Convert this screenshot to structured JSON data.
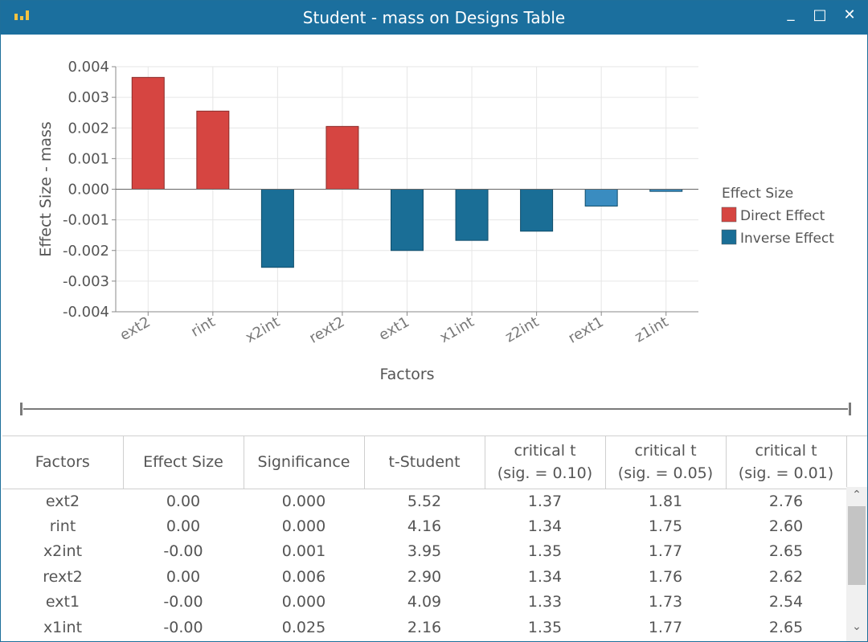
{
  "window": {
    "title": "Student - mass on Designs Table",
    "minimize": "_",
    "maximize": "□",
    "close": "✕"
  },
  "chart_data": {
    "type": "bar",
    "title": "",
    "xlabel": "Factors",
    "ylabel": "Effect Size - mass",
    "ylim": [
      -0.004,
      0.004
    ],
    "yticks": [
      "0.004",
      "0.003",
      "0.002",
      "0.001",
      "0.000",
      "-0.001",
      "-0.002",
      "-0.003",
      "-0.004"
    ],
    "ytick_values": [
      0.004,
      0.003,
      0.002,
      0.001,
      0.0,
      -0.001,
      -0.002,
      -0.003,
      -0.004
    ],
    "categories": [
      "ext2",
      "rint",
      "x2int",
      "rext2",
      "ext1",
      "x1int",
      "z2int",
      "rext1",
      "z1int"
    ],
    "values": [
      0.00365,
      0.00255,
      -0.00255,
      0.00205,
      -0.002,
      -0.00167,
      -0.00137,
      -0.00055,
      -7e-05
    ],
    "grid": true,
    "legend": {
      "title": "Effect Size",
      "placement": "right",
      "items": [
        {
          "name": "Direct Effect",
          "color": "#d64541"
        },
        {
          "name": "Inverse Effect",
          "color": "#1a6e96"
        }
      ]
    },
    "colors": {
      "direct": "#d64541",
      "inverse": "#1a6e96",
      "inverse_light": "#3a8cc0"
    }
  },
  "table": {
    "headers": [
      [
        "Factors"
      ],
      [
        "Effect Size"
      ],
      [
        "Significance"
      ],
      [
        "t-Student"
      ],
      [
        "critical t",
        "(sig. = 0.10)"
      ],
      [
        "critical t",
        "(sig. = 0.05)"
      ],
      [
        "critical t",
        "(sig. = 0.01)"
      ]
    ],
    "rows": [
      [
        "ext2",
        "0.00",
        "0.000",
        "5.52",
        "1.37",
        "1.81",
        "2.76"
      ],
      [
        "rint",
        "0.00",
        "0.000",
        "4.16",
        "1.34",
        "1.75",
        "2.60"
      ],
      [
        "x2int",
        "-0.00",
        "0.001",
        "3.95",
        "1.35",
        "1.77",
        "2.65"
      ],
      [
        "rext2",
        "0.00",
        "0.006",
        "2.90",
        "1.34",
        "1.76",
        "2.62"
      ],
      [
        "ext1",
        "-0.00",
        "0.000",
        "4.09",
        "1.33",
        "1.73",
        "2.54"
      ],
      [
        "x1int",
        "-0.00",
        "0.025",
        "2.16",
        "1.35",
        "1.77",
        "2.65"
      ]
    ]
  },
  "scrollbar": {
    "up": "⌃",
    "down": "⌄"
  }
}
